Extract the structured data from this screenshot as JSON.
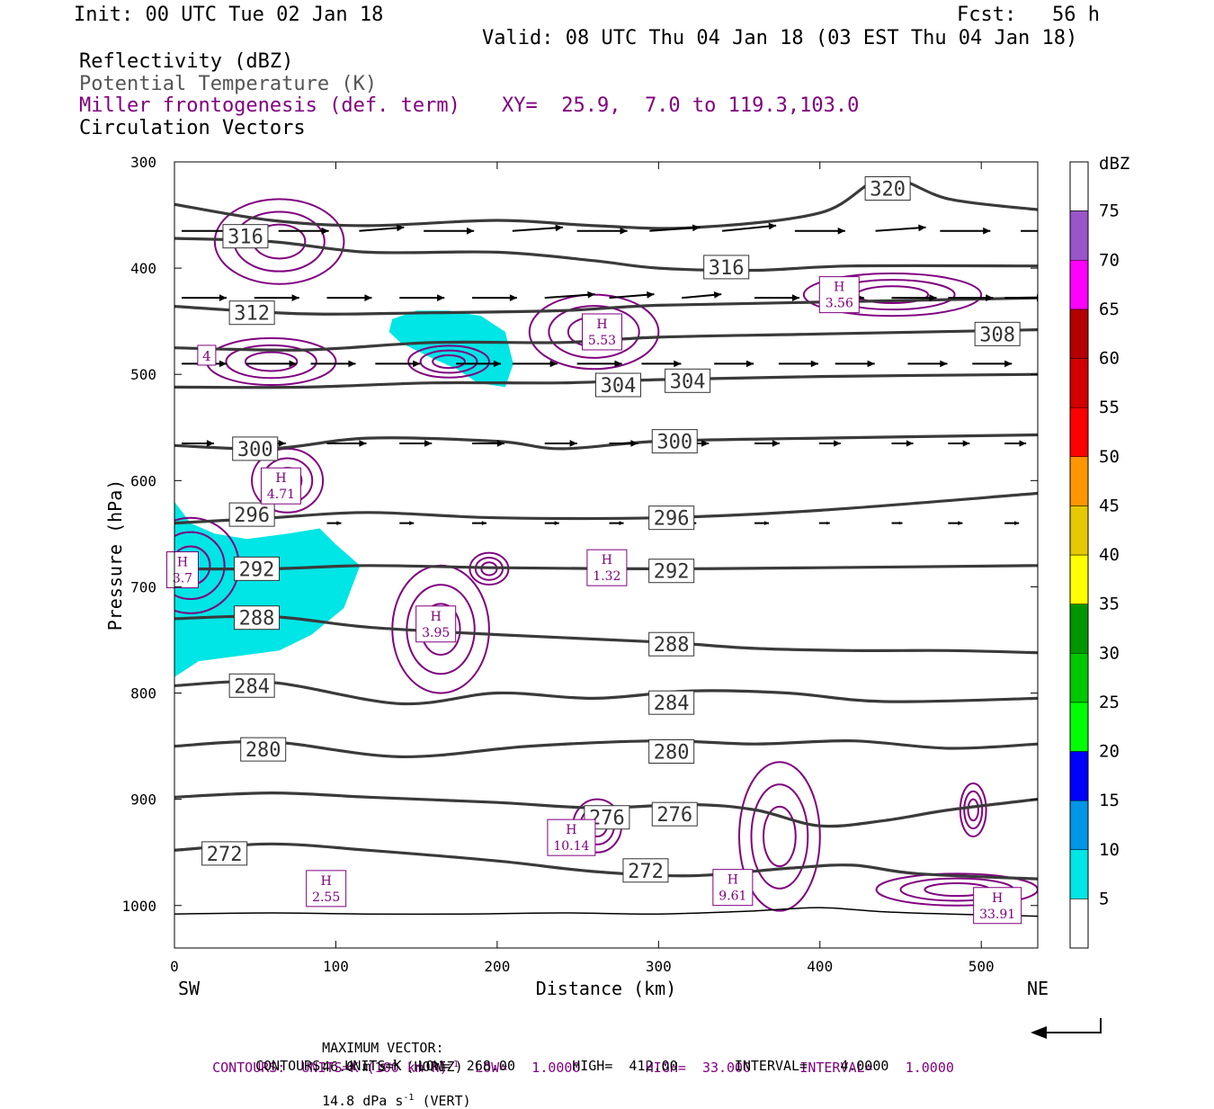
{
  "header": {
    "init": "Init: 00 UTC Tue 02 Jan 18",
    "fcst": "Fcst:   56 h",
    "valid": "Valid: 08 UTC Thu 04 Jan 18 (03 EST Thu 04 Jan 18)",
    "field1": "Reflectivity (dBZ)",
    "field2": "Potential Temperature (K)",
    "field3": "Miller frontogenesis (def. term)",
    "xy": "XY=  25.9,  7.0 to 119.3,103.0",
    "field4": "Circulation Vectors"
  },
  "colors": {
    "theta": "#3a3a3a",
    "frontogenesis": "#800080",
    "reflectivity_5": "#00e5e5",
    "vector": "#000000"
  },
  "chart_data": {
    "type": "cross-section",
    "xlabel": "Distance (km)",
    "ylabel": "Pressure (hPa)",
    "xlim": [
      0,
      535
    ],
    "ylim": [
      1040,
      300
    ],
    "x_ticks": [
      0,
      100,
      200,
      300,
      400,
      500
    ],
    "y_ticks": [
      300,
      400,
      500,
      600,
      700,
      800,
      900,
      1000
    ],
    "x_left_label": "SW",
    "x_right_label": "NE",
    "colorbar": {
      "title": "dBZ",
      "levels": [
        5,
        10,
        15,
        20,
        25,
        30,
        35,
        40,
        45,
        50,
        55,
        60,
        65,
        70,
        75
      ],
      "colors": [
        "#ffffff",
        "#00e5e5",
        "#0096e6",
        "#0000ff",
        "#00ff00",
        "#00c800",
        "#009600",
        "#ffff00",
        "#e6c800",
        "#ff9600",
        "#ff0000",
        "#d20000",
        "#b40000",
        "#ff00ff",
        "#9955c9"
      ]
    },
    "theta_isentropes": [
      {
        "label": "272",
        "x": [
          0,
          60,
          120,
          200,
          260,
          320,
          380,
          420,
          460,
          535
        ],
        "p": [
          948,
          942,
          948,
          958,
          968,
          972,
          965,
          962,
          970,
          975
        ]
      },
      {
        "label": "276",
        "x": [
          0,
          60,
          120,
          200,
          260,
          320,
          360,
          400,
          440,
          480,
          535
        ],
        "p": [
          898,
          894,
          898,
          903,
          908,
          905,
          910,
          925,
          920,
          910,
          900
        ]
      },
      {
        "label": "280",
        "x": [
          0,
          60,
          140,
          220,
          300,
          360,
          420,
          480,
          535
        ],
        "p": [
          850,
          846,
          860,
          850,
          845,
          848,
          845,
          852,
          848
        ]
      },
      {
        "label": "284",
        "x": [
          0,
          60,
          140,
          200,
          260,
          320,
          380,
          440,
          535
        ],
        "p": [
          793,
          790,
          810,
          800,
          805,
          798,
          800,
          808,
          805
        ]
      },
      {
        "label": "288",
        "x": [
          0,
          60,
          120,
          200,
          300,
          360,
          420,
          480,
          535
        ],
        "p": [
          730,
          728,
          738,
          745,
          752,
          758,
          760,
          760,
          762
        ]
      },
      {
        "label": "292",
        "x": [
          0,
          60,
          120,
          200,
          300,
          400,
          535
        ],
        "p": [
          683,
          683,
          680,
          682,
          683,
          682,
          680
        ]
      },
      {
        "label": "296",
        "x": [
          0,
          60,
          120,
          200,
          300,
          400,
          535
        ],
        "p": [
          640,
          635,
          630,
          635,
          635,
          628,
          612
        ]
      },
      {
        "label": "300",
        "x": [
          0,
          60,
          120,
          200,
          240,
          300,
          400,
          535
        ],
        "p": [
          567,
          570,
          560,
          563,
          570,
          563,
          560,
          557
        ]
      },
      {
        "label": "304",
        "x": [
          0,
          80,
          160,
          240,
          300,
          400,
          535
        ],
        "p": [
          512,
          512,
          508,
          508,
          505,
          502,
          500
        ]
      },
      {
        "label": "308",
        "x": [
          0,
          80,
          160,
          240,
          300,
          400,
          535
        ],
        "p": [
          475,
          477,
          470,
          470,
          465,
          462,
          458
        ]
      },
      {
        "label": "312",
        "x": [
          0,
          80,
          160,
          240,
          300,
          400,
          535
        ],
        "p": [
          436,
          443,
          442,
          440,
          435,
          432,
          428
        ]
      },
      {
        "label": "316",
        "x": [
          0,
          60,
          120,
          200,
          260,
          300,
          360,
          420,
          535
        ],
        "p": [
          372,
          375,
          385,
          385,
          393,
          400,
          402,
          398,
          398
        ]
      },
      {
        "label": "320",
        "x": [
          0,
          60,
          120,
          200,
          260,
          320,
          400,
          440,
          480,
          535
        ],
        "p": [
          340,
          355,
          360,
          355,
          360,
          362,
          348,
          315,
          335,
          345
        ]
      }
    ],
    "theta_labels": [
      {
        "text": "316",
        "x": 44,
        "p": 370
      },
      {
        "text": "316",
        "x": 342,
        "p": 399
      },
      {
        "text": "320",
        "x": 442,
        "p": 325
      },
      {
        "text": "312",
        "x": 48,
        "p": 442
      },
      {
        "text": "308",
        "x": 510,
        "p": 462
      },
      {
        "text": "304",
        "x": 275,
        "p": 510
      },
      {
        "text": "304",
        "x": 318,
        "p": 506
      },
      {
        "text": "300",
        "x": 50,
        "p": 570
      },
      {
        "text": "300",
        "x": 310,
        "p": 563
      },
      {
        "text": "296",
        "x": 48,
        "p": 632
      },
      {
        "text": "296",
        "x": 308,
        "p": 635
      },
      {
        "text": "292",
        "x": 51,
        "p": 683
      },
      {
        "text": "292",
        "x": 308,
        "p": 685
      },
      {
        "text": "288",
        "x": 51,
        "p": 729
      },
      {
        "text": "288",
        "x": 308,
        "p": 754
      },
      {
        "text": "284",
        "x": 48,
        "p": 793
      },
      {
        "text": "284",
        "x": 308,
        "p": 809
      },
      {
        "text": "280",
        "x": 55,
        "p": 853
      },
      {
        "text": "280",
        "x": 308,
        "p": 855
      },
      {
        "text": "276",
        "x": 268,
        "p": 917
      },
      {
        "text": "276",
        "x": 310,
        "p": 914
      },
      {
        "text": "272",
        "x": 31,
        "p": 951
      },
      {
        "text": "272",
        "x": 292,
        "p": 967
      }
    ],
    "reflectivity_areas": [
      {
        "level": 5,
        "x": [
          135,
          150,
          170,
          190,
          205,
          210,
          205,
          188,
          175,
          160,
          140,
          133
        ],
        "p": [
          448,
          440,
          440,
          445,
          460,
          490,
          512,
          508,
          495,
          485,
          470,
          460
        ]
      },
      {
        "level": 5,
        "x": [
          0,
          10,
          25,
          45,
          70,
          90,
          100,
          115,
          105,
          85,
          65,
          40,
          15,
          0
        ],
        "p": [
          620,
          640,
          650,
          655,
          650,
          645,
          660,
          680,
          720,
          745,
          760,
          765,
          770,
          785
        ]
      }
    ],
    "frontogenesis_maxima": [
      {
        "text": "H 5.53",
        "x": 265,
        "p": 460
      },
      {
        "text": "H 3.56",
        "x": 412,
        "p": 425
      },
      {
        "text": "H 4.71",
        "x": 66,
        "p": 605
      },
      {
        "text": "H 3.7",
        "x": 5,
        "p": 684
      },
      {
        "text": "H 1.32",
        "x": 268,
        "p": 682
      },
      {
        "text": "H 3.95",
        "x": 162,
        "p": 735
      },
      {
        "text": "H 10.14",
        "x": 246,
        "p": 936
      },
      {
        "text": "H 2.55",
        "x": 94,
        "p": 984
      },
      {
        "text": "H 9.61",
        "x": 346,
        "p": 983
      },
      {
        "text": "H 33.91",
        "x": 510,
        "p": 1000
      },
      {
        "text": "4",
        "x": 20,
        "p": 482
      }
    ],
    "frontogenesis_contour_centers": [
      {
        "x": 65,
        "p": 375,
        "rx": 40,
        "ry": 40
      },
      {
        "x": 260,
        "p": 460,
        "rx": 40,
        "ry": 35
      },
      {
        "x": 445,
        "p": 425,
        "rx": 55,
        "ry": 20
      },
      {
        "x": 60,
        "p": 488,
        "rx": 40,
        "ry": 22
      },
      {
        "x": 170,
        "p": 488,
        "rx": 25,
        "ry": 15
      },
      {
        "x": 70,
        "p": 600,
        "rx": 22,
        "ry": 30
      },
      {
        "x": 10,
        "p": 680,
        "rx": 30,
        "ry": 45
      },
      {
        "x": 165,
        "p": 740,
        "rx": 30,
        "ry": 60
      },
      {
        "x": 195,
        "p": 683,
        "rx": 12,
        "ry": 15
      },
      {
        "x": 262,
        "p": 925,
        "rx": 15,
        "ry": 25
      },
      {
        "x": 375,
        "p": 935,
        "rx": 25,
        "ry": 70
      },
      {
        "x": 495,
        "p": 910,
        "rx": 8,
        "ry": 25
      },
      {
        "x": 485,
        "p": 985,
        "rx": 50,
        "ry": 15
      }
    ],
    "vectors": [
      {
        "p": 365,
        "x": [
          0,
          60,
          110,
          150,
          205,
          245,
          290,
          335,
          380,
          430,
          470,
          520
        ],
        "u": [
          28,
          28,
          25,
          28,
          28,
          28,
          28,
          30,
          28,
          28,
          28,
          30
        ],
        "w": [
          0,
          0,
          2,
          0,
          2,
          0,
          2,
          3,
          0,
          2,
          0,
          0
        ]
      },
      {
        "p": 428,
        "x": [
          0,
          45,
          90,
          135,
          180,
          225,
          265,
          310,
          355,
          395,
          440,
          475,
          510
        ],
        "u": [
          25,
          25,
          25,
          25,
          25,
          28,
          25,
          22,
          25,
          25,
          25,
          25,
          22
        ],
        "w": [
          0,
          0,
          0,
          0,
          0,
          2,
          2,
          2,
          0,
          0,
          0,
          0,
          0
        ]
      },
      {
        "p": 490,
        "x": [
          0,
          40,
          80,
          120,
          170,
          205,
          245,
          285,
          330,
          370,
          405,
          450,
          490
        ],
        "u": [
          25,
          28,
          25,
          25,
          25,
          25,
          25,
          22,
          22,
          22,
          22,
          22,
          22
        ],
        "w": [
          0,
          0,
          0,
          0,
          0,
          0,
          0,
          0,
          0,
          0,
          0,
          0,
          0
        ]
      },
      {
        "p": 565,
        "x": [
          0,
          40,
          90,
          135,
          180,
          225,
          265,
          310,
          355,
          395,
          440,
          475,
          510
        ],
        "u": [
          18,
          22,
          22,
          18,
          18,
          18,
          16,
          15,
          14,
          12,
          12,
          12,
          12
        ],
        "w": [
          0,
          0,
          0,
          0,
          0,
          0,
          0,
          0,
          0,
          0,
          0,
          0,
          0
        ]
      },
      {
        "p": 640,
        "x": [
          90,
          135,
          180,
          225,
          265,
          310,
          355,
          395,
          440,
          475,
          510
        ],
        "u": [
          8,
          8,
          8,
          8,
          8,
          8,
          8,
          6,
          6,
          8,
          8
        ],
        "w": [
          0,
          0,
          0,
          0,
          0,
          0,
          0,
          0,
          0,
          0,
          0
        ]
      }
    ]
  },
  "footer": {
    "max_vector_label": "MAXIMUM VECTOR:",
    "max_horiz": "46.0 m s",
    "horiz_exp": "-1",
    "horiz_tag": " (HORIZ)",
    "max_vert": "14.8 dPa s",
    "vert_exp": "-1",
    "vert_tag": " (VERT)",
    "contours1_prefix": "CONTOURS:  UNITS=K (100 km h)",
    "contours1_exp": "-1",
    "contours1_rest": "  LOW=   1.0000        HIGH=  33.000      INTERVAL=    1.0000",
    "contours2": "CONTOURS:  UNITS=K  LOW=  268.00       HIGH=  412.00       INTERVAL=    4.0000"
  }
}
